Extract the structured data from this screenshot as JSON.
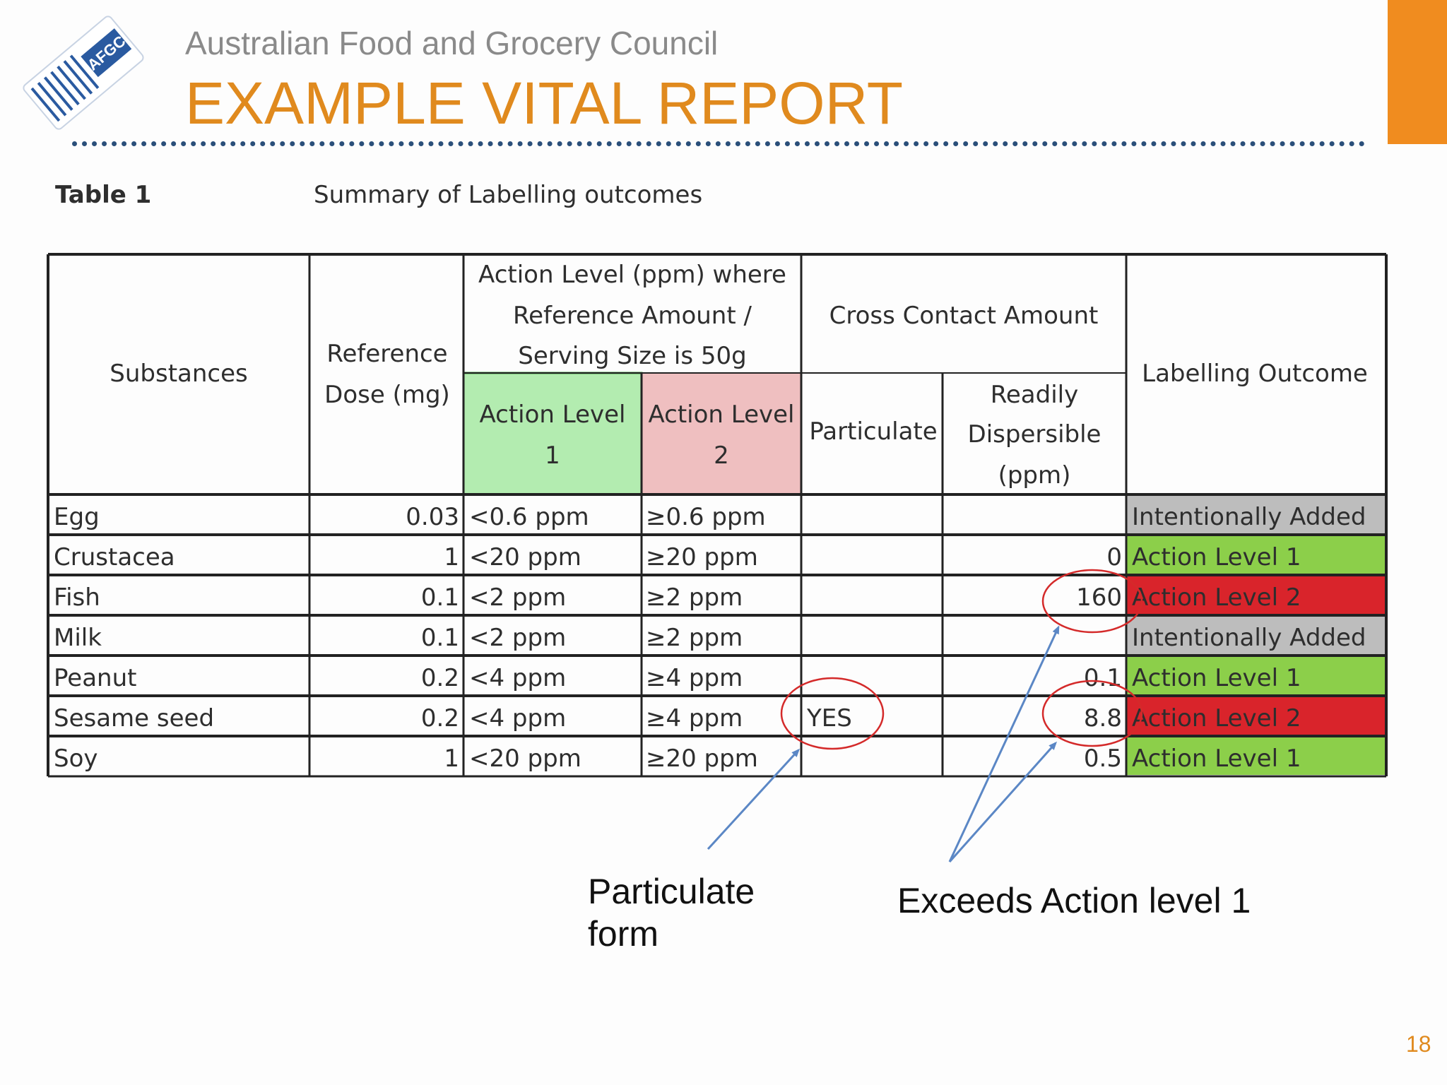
{
  "header": {
    "org_name": "Australian Food and Grocery Council",
    "title": "EXAMPLE VITAL REPORT",
    "logo_text": "AFGC"
  },
  "table": {
    "number": "Table 1",
    "caption": "Summary of Labelling outcomes",
    "headers": {
      "substances": "Substances",
      "reference_dose": [
        "Reference",
        "Dose (mg)"
      ],
      "action_level_group": [
        "Action Level (ppm) where",
        "Reference Amount /",
        "Serving Size is 50g"
      ],
      "action_level_1": [
        "Action Level",
        "1"
      ],
      "action_level_2": [
        "Action Level",
        "2"
      ],
      "cross_contact_group": "Cross Contact Amount",
      "particulate": "Particulate",
      "readily_dispersible": [
        "Readily",
        "Dispersible",
        "(ppm)"
      ],
      "labelling_outcome": "Labelling Outcome"
    },
    "rows": [
      {
        "substance": "Egg",
        "ref_dose": "0.03",
        "al1": "<0.6 ppm",
        "al2": "≥0.6 ppm",
        "particulate": "",
        "dispersible": "",
        "outcome": "Intentionally Added",
        "outcome_type": "intentional"
      },
      {
        "substance": "Crustacea",
        "ref_dose": "1",
        "al1": "<20 ppm",
        "al2": "≥20 ppm",
        "particulate": "",
        "dispersible": "0",
        "outcome": "Action Level 1",
        "outcome_type": "al1"
      },
      {
        "substance": "Fish",
        "ref_dose": "0.1",
        "al1": "<2 ppm",
        "al2": "≥2 ppm",
        "particulate": "",
        "dispersible": "160",
        "outcome": "Action Level 2",
        "outcome_type": "al2"
      },
      {
        "substance": "Milk",
        "ref_dose": "0.1",
        "al1": "<2 ppm",
        "al2": "≥2 ppm",
        "particulate": "",
        "dispersible": "",
        "outcome": "Intentionally Added",
        "outcome_type": "intentional"
      },
      {
        "substance": "Peanut",
        "ref_dose": "0.2",
        "al1": "<4 ppm",
        "al2": "≥4 ppm",
        "particulate": "",
        "dispersible": "0.1",
        "outcome": "Action Level 1",
        "outcome_type": "al1"
      },
      {
        "substance": "Sesame seed",
        "ref_dose": "0.2",
        "al1": "<4 ppm",
        "al2": "≥4 ppm",
        "particulate": "YES",
        "dispersible": "8.8",
        "outcome": "Action Level 2",
        "outcome_type": "al2"
      },
      {
        "substance": "Soy",
        "ref_dose": "1",
        "al1": "<20 ppm",
        "al2": "≥20 ppm",
        "particulate": "",
        "dispersible": "0.5",
        "outcome": "Action Level 1",
        "outcome_type": "al1"
      }
    ]
  },
  "annotations": {
    "particulate_label": [
      "Particulate",
      "form"
    ],
    "exceeds_label": "Exceeds Action level 1"
  },
  "colors": {
    "title_orange": "#e08a1e",
    "al1_header": "#b3ecb0",
    "al2_header": "#efbfc0",
    "outcome_green": "#8ccf4a",
    "outcome_red": "#d9242b",
    "outcome_grey": "#bdbdbd",
    "annotation_circle": "#d42a2a",
    "annotation_arrow": "#5b87c5"
  },
  "page_number": "18"
}
